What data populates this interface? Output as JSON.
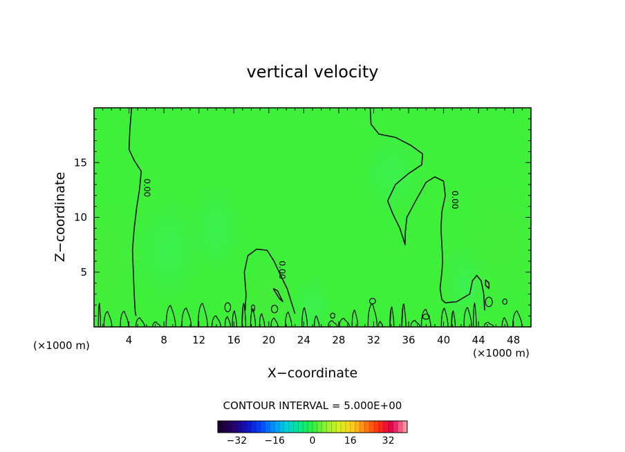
{
  "chart_data": {
    "type": "heatmap",
    "title": "vertical velocity",
    "xlabel": "X−coordinate",
    "ylabel": "Z−coordinate",
    "x_unit_left": "(×1000 m)",
    "x_unit_right": "(×1000 m)",
    "xlim": [
      0,
      50
    ],
    "ylim": [
      0,
      20
    ],
    "x_ticks": [
      4,
      8,
      12,
      16,
      20,
      24,
      28,
      32,
      36,
      40,
      44,
      48
    ],
    "x_tick_labels": [
      "4",
      "8",
      "12",
      "16",
      "20",
      "24",
      "28",
      "32",
      "36",
      "40",
      "44",
      "48"
    ],
    "y_ticks": [
      5,
      10,
      15
    ],
    "y_tick_labels": [
      "5",
      "10",
      "15"
    ],
    "field_color": "#3ef03a",
    "contour_level_label": "0.00",
    "contour_interval_text": "CONTOUR INTERVAL = 5.000E+00",
    "colorbar": {
      "range": [
        -40,
        40
      ],
      "ticks": [
        -32,
        -16,
        0,
        16,
        32
      ],
      "tick_labels": [
        "−32",
        "−16",
        "0",
        "16",
        "32"
      ],
      "colors": [
        "#1a0030",
        "#2a006a",
        "#1010c0",
        "#0040ff",
        "#0090ff",
        "#00d0e0",
        "#00e890",
        "#30f040",
        "#90f030",
        "#d8f020",
        "#ffd020",
        "#ff8010",
        "#ff3010",
        "#e00050",
        "#ff90a0"
      ]
    },
    "contours": [
      {
        "id": "left-plume",
        "points": [
          [
            4.3,
            20
          ],
          [
            4.1,
            18
          ],
          [
            4.0,
            16.2
          ],
          [
            4.6,
            15.2
          ],
          [
            5.4,
            14.2
          ],
          [
            5.2,
            12.5
          ],
          [
            4.9,
            11.0
          ],
          [
            4.6,
            9.0
          ],
          [
            4.4,
            7.0
          ],
          [
            4.5,
            5.0
          ],
          [
            4.6,
            3.0
          ],
          [
            4.7,
            1.5
          ],
          [
            4.8,
            1.0
          ]
        ]
      },
      {
        "id": "center-plume",
        "points": [
          [
            17.3,
            1.5
          ],
          [
            17.4,
            3.0
          ],
          [
            17.2,
            5.0
          ],
          [
            17.6,
            6.5
          ],
          [
            18.6,
            7.1
          ],
          [
            19.8,
            7.0
          ],
          [
            20.6,
            6.0
          ],
          [
            21.3,
            4.8
          ],
          [
            22.1,
            3.5
          ],
          [
            22.6,
            2.2
          ],
          [
            23.0,
            1.2
          ]
        ]
      },
      {
        "id": "center-cell",
        "points": [
          [
            20.5,
            3.5
          ],
          [
            21.2,
            2.6
          ],
          [
            21.6,
            2.3
          ],
          [
            21.0,
            3.3
          ],
          [
            20.5,
            3.5
          ]
        ]
      },
      {
        "id": "upper-right-plume",
        "points": [
          [
            31.6,
            20
          ],
          [
            31.7,
            18.5
          ],
          [
            32.6,
            17.6
          ],
          [
            34.5,
            17.3
          ],
          [
            36.2,
            16.6
          ],
          [
            37.6,
            15.8
          ],
          [
            37.5,
            14.8
          ],
          [
            36.0,
            14.0
          ],
          [
            34.5,
            13.0
          ],
          [
            33.6,
            11.5
          ],
          [
            34.2,
            10.3
          ],
          [
            35.0,
            9.0
          ],
          [
            35.6,
            7.5
          ],
          [
            35.6,
            8.5
          ],
          [
            35.8,
            10.0
          ],
          [
            36.8,
            11.5
          ],
          [
            38.0,
            13.2
          ],
          [
            39.0,
            13.7
          ],
          [
            40.0,
            13.3
          ],
          [
            40.2,
            12.0
          ],
          [
            39.8,
            10.5
          ],
          [
            39.7,
            9.0
          ],
          [
            39.8,
            7.5
          ],
          [
            39.9,
            6.0
          ],
          [
            39.8,
            5.0
          ],
          [
            39.6,
            3.5
          ],
          [
            39.8,
            2.5
          ],
          [
            40.2,
            2.2
          ],
          [
            41.5,
            2.3
          ],
          [
            43.0,
            3.0
          ],
          [
            43.3,
            4.2
          ],
          [
            43.8,
            4.7
          ],
          [
            44.3,
            4.2
          ],
          [
            44.6,
            3.0
          ],
          [
            44.7,
            1.5
          ]
        ]
      },
      {
        "id": "right-cell",
        "points": [
          [
            44.8,
            4.3
          ],
          [
            45.2,
            4.0
          ],
          [
            45.2,
            3.5
          ],
          [
            44.8,
            3.8
          ],
          [
            44.8,
            4.3
          ]
        ]
      }
    ],
    "contour_labels": [
      {
        "x": 5.75,
        "y": 12.7,
        "text": "0.00"
      },
      {
        "x": 21.2,
        "y": 5.2,
        "text": "0.00"
      },
      {
        "x": 41.0,
        "y": 11.6,
        "text": "0.00"
      }
    ],
    "surface_noise": {
      "x_start": 0.5,
      "x_end": 49.8,
      "max_height": 2.0
    },
    "grid": false
  }
}
